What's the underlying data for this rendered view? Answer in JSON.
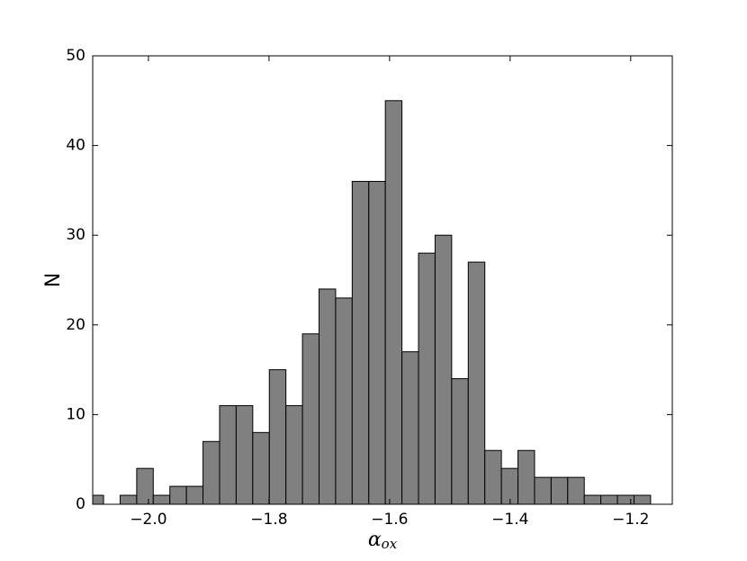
{
  "chart_data": {
    "type": "histogram",
    "bins": [
      -2.102,
      -2.0745,
      -2.047,
      -2.0195,
      -1.992,
      -1.9645,
      -1.937,
      -1.9095,
      -1.882,
      -1.8545,
      -1.827,
      -1.7995,
      -1.772,
      -1.7445,
      -1.717,
      -1.6895,
      -1.662,
      -1.6345,
      -1.607,
      -1.5795,
      -1.552,
      -1.5245,
      -1.497,
      -1.4695,
      -1.442,
      -1.4145,
      -1.387,
      -1.3595,
      -1.332,
      -1.3045,
      -1.277,
      -1.2495,
      -1.222,
      -1.1945,
      -1.167
    ],
    "values": [
      1,
      0,
      1,
      4,
      1,
      2,
      2,
      7,
      11,
      11,
      8,
      15,
      11,
      19,
      24,
      23,
      36,
      36,
      45,
      17,
      28,
      30,
      14,
      27,
      6,
      4,
      6,
      3,
      3,
      3,
      1,
      1,
      1,
      1
    ],
    "color": "#808080",
    "xlim": [
      -2.0925,
      -1.131
    ],
    "xticks": [
      {
        "value": -2.0,
        "label": "−2.0"
      },
      {
        "value": -1.8,
        "label": "−1.8"
      },
      {
        "value": -1.6,
        "label": "−1.6"
      },
      {
        "value": -1.4,
        "label": "−1.4"
      },
      {
        "value": -1.2,
        "label": "−1.2"
      }
    ],
    "ylim": [
      0,
      50
    ],
    "yticks": [
      0,
      10,
      20,
      30,
      40,
      50
    ],
    "xlabel": {
      "symbol": "α",
      "subscript": "ox"
    },
    "ylabel": "N"
  }
}
